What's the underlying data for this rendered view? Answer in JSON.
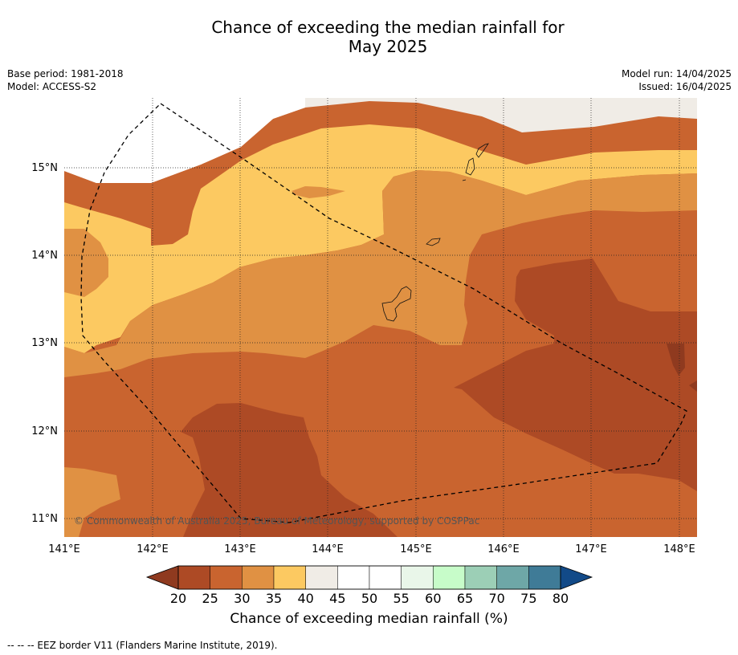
{
  "title_line1": "Chance of exceeding the median rainfall for",
  "title_line2": "May 2025",
  "base_period": "Base period: 1981-2018",
  "model": "Model: ACCESS-S2",
  "model_run": "Model run: 14/04/2025",
  "issued": "Issued: 16/04/2025",
  "copyright": "© Commonwealth of Australia 2025, Bureau of Meteorology, supported by COSPPac",
  "lon_labels": [
    "141°E",
    "142°E",
    "143°E",
    "144°E",
    "145°E",
    "146°E",
    "147°E",
    "148°E"
  ],
  "lat_labels": [
    "15°N",
    "14°N",
    "13°N",
    "12°N",
    "11°N"
  ],
  "colorbar": {
    "ticks": [
      "20",
      "25",
      "30",
      "35",
      "40",
      "45",
      "50",
      "55",
      "60",
      "65",
      "70",
      "75",
      "80"
    ],
    "colors": [
      "#ad4a25",
      "#c9642f",
      "#e09143",
      "#fcc961",
      "#f0ece6",
      "#ffffff",
      "#ffffff",
      "#e9f6e9",
      "#c7fcc9",
      "#9ccfb6",
      "#6ea7a7",
      "#3f7b97",
      "#174e88"
    ],
    "label": "Chance of exceeding median rainfall (%)"
  },
  "legend_footer": "--  --  -- EEZ border V11 (Flanders Marine Institute, 2019).",
  "colors": {
    "c20_25": "#ad4a25",
    "c25_30": "#c9642f",
    "c30_35": "#e09143",
    "c35_40": "#fcc961",
    "c40_45": "#f0ece6",
    "c45_55": "#ffffff",
    "below20": "#8f3a1f"
  }
}
